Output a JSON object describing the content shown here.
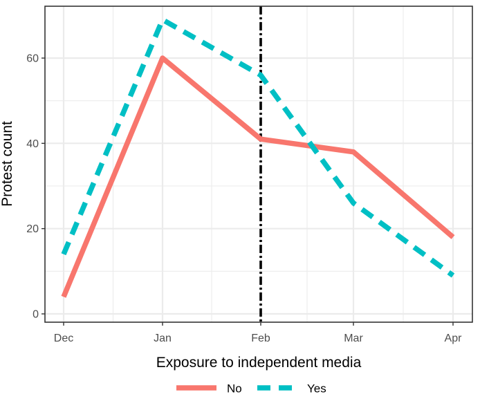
{
  "chart_data": {
    "type": "line",
    "x_categories": [
      "Dec",
      "Jan",
      "Feb",
      "Mar",
      "Apr"
    ],
    "x_values": [
      0,
      1,
      2,
      2.94,
      3.95
    ],
    "xlabel": "Exposure to independent media",
    "ylabel": "Protest count",
    "ylim": [
      -2,
      72
    ],
    "yticks": [
      0,
      20,
      40,
      60
    ],
    "grid": true,
    "legend_position": "bottom",
    "series": [
      {
        "name": "No",
        "values": [
          4,
          60,
          41,
          38,
          18
        ],
        "color": "#F8766D",
        "linestyle": "solid"
      },
      {
        "name": "Yes",
        "values": [
          14,
          69,
          56,
          26,
          9
        ],
        "color": "#00BFC4",
        "linestyle": "dashed"
      }
    ],
    "reference_line": {
      "x": 2,
      "style": "dot-dash",
      "color": "#000000"
    }
  }
}
